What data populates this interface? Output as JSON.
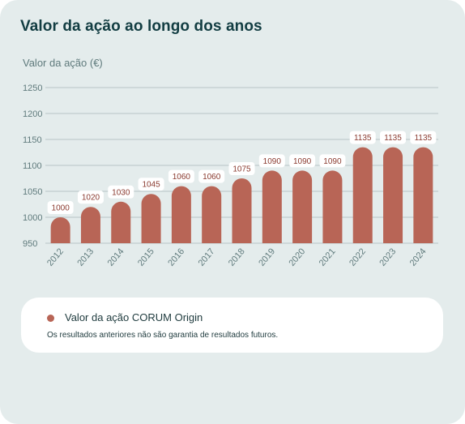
{
  "card": {
    "title": "Valor da ação ao longo dos anos",
    "background": "#e4ecec"
  },
  "chart_data": {
    "type": "bar",
    "title": "Valor da ação ao longo dos anos",
    "ylabel": "Valor da ação (€)",
    "xlabel": "",
    "categories": [
      "2012",
      "2013",
      "2014",
      "2015",
      "2016",
      "2017",
      "2018",
      "2019",
      "2020",
      "2021",
      "2022",
      "2023",
      "2024"
    ],
    "series": [
      {
        "name": "Valor da ação CORUM Origin",
        "values": [
          1000,
          1020,
          1030,
          1045,
          1060,
          1060,
          1075,
          1090,
          1090,
          1090,
          1135,
          1135,
          1135
        ],
        "color": "#b86556"
      }
    ],
    "data_labels": [
      "1000",
      "1020",
      "1030",
      "1045",
      "1060",
      "1060",
      "1075",
      "1090",
      "1090",
      "1090",
      "1135",
      "1135",
      "1135"
    ],
    "ylim": [
      950,
      1250
    ],
    "yticks": [
      950,
      1000,
      1050,
      1100,
      1150,
      1200,
      1250
    ],
    "grid": true,
    "gridColor": "#b7c5c6",
    "tickColor": "#5f7a7c"
  },
  "legend": {
    "label": "Valor da ação CORUM Origin",
    "note": "Os resultados anteriores não são garantia de resultados futuros."
  }
}
